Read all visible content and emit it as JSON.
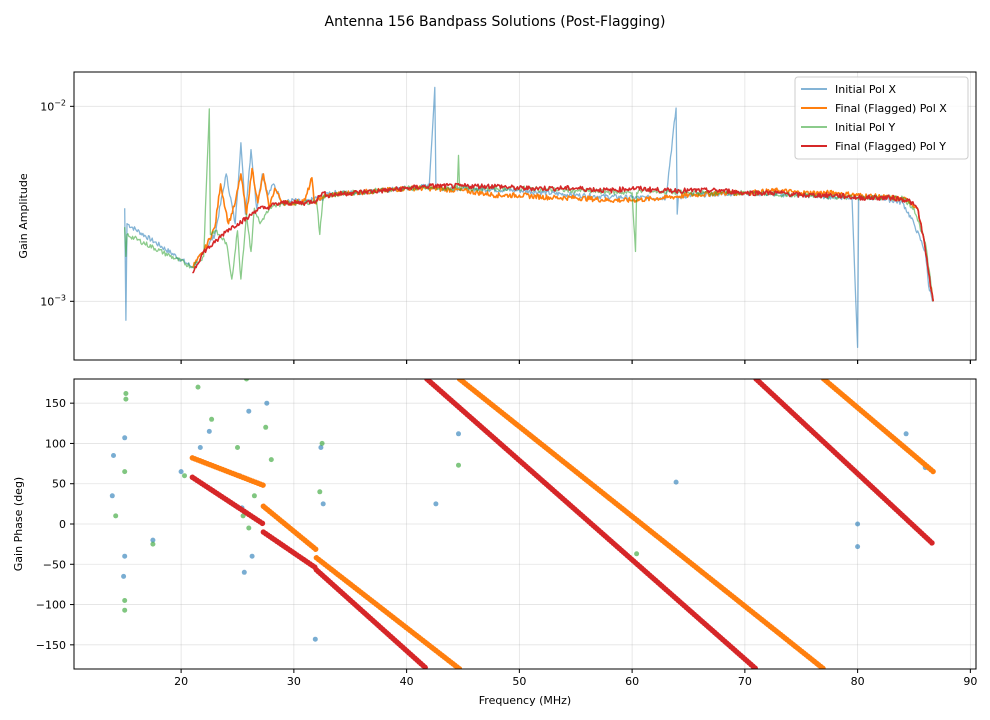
{
  "figure": {
    "title": "Antenna 156 Bandpass Solutions (Post-Flagging)"
  },
  "colors": {
    "pol_x_initial": "#1f77b4",
    "pol_x_final": "#ff7f0e",
    "pol_y_initial": "#2ca02c",
    "pol_y_final": "#d62728",
    "grid": "#b0b0b0"
  },
  "chart_data": [
    {
      "type": "line",
      "title": "Antenna 156 Bandpass Solutions (Post-Flagging)",
      "xlabel": "",
      "ylabel": "Gain Amplitude",
      "xlim": [
        10.5,
        90.5
      ],
      "ylim": [
        0.0005,
        0.015
      ],
      "yscale": "log",
      "x_ticks": [
        20,
        30,
        40,
        50,
        60,
        70,
        80,
        90
      ],
      "y_ticks": [
        0.001,
        0.01
      ],
      "y_tick_labels": [
        "10−3",
        "10−2"
      ],
      "grid": true,
      "legend_position": "top-right",
      "series": [
        {
          "name": "Initial Pol X",
          "color": "#1f77b4",
          "alpha": 0.55,
          "x": [
            15.0,
            15.1,
            15.2,
            21.0,
            22.0,
            23.0,
            24.0,
            24.8,
            25.3,
            25.7,
            26.2,
            26.7,
            27.2,
            27.7,
            28.2,
            29.0,
            30.0,
            31.0,
            32.0,
            32.4,
            33.0,
            35.0,
            38.0,
            40.0,
            42.0,
            42.5,
            42.6,
            43.0,
            45.0,
            50.0,
            55.0,
            60.0,
            63.0,
            63.9,
            64.0,
            64.1,
            65.0,
            70.0,
            75.0,
            79.5,
            80.0,
            80.1,
            80.5,
            82.0,
            84.0,
            85.0,
            86.0,
            86.3,
            86.7
          ],
          "y": [
            0.003,
            0.0008,
            0.0025,
            0.0015,
            0.0018,
            0.0022,
            0.0045,
            0.0025,
            0.0065,
            0.0028,
            0.006,
            0.003,
            0.0045,
            0.0035,
            0.004,
            0.0032,
            0.0033,
            0.0032,
            0.0034,
            0.0033,
            0.0036,
            0.0036,
            0.0037,
            0.0038,
            0.0039,
            0.0125,
            0.0039,
            0.0038,
            0.0038,
            0.0037,
            0.0035,
            0.0034,
            0.0034,
            0.0098,
            0.0028,
            0.0034,
            0.0035,
            0.0036,
            0.0035,
            0.0034,
            0.00058,
            0.0034,
            0.0034,
            0.0034,
            0.0032,
            0.0025,
            0.0018,
            0.0012,
            0.001
          ]
        },
        {
          "name": "Final (Flagged) Pol X",
          "color": "#ff7f0e",
          "alpha": 1.0,
          "x": [
            21.0,
            22.0,
            23.0,
            23.5,
            24.2,
            24.8,
            25.3,
            25.8,
            26.3,
            26.8,
            27.3,
            27.8,
            28.3,
            29.0,
            30.0,
            31.0,
            31.6,
            31.8,
            32.4,
            33.0,
            35.0,
            38.0,
            40.0,
            42.0,
            45.0,
            48.0,
            50.0,
            53.0,
            55.0,
            58.0,
            60.0,
            63.0,
            65.0,
            68.0,
            70.0,
            73.0,
            75.0,
            78.0,
            80.0,
            83.0,
            84.5,
            85.3,
            85.8,
            86.3,
            86.7
          ],
          "y": [
            0.0015,
            0.0018,
            0.0024,
            0.004,
            0.0025,
            0.0032,
            0.0045,
            0.0028,
            0.0048,
            0.0032,
            0.0045,
            0.003,
            0.0038,
            0.0032,
            0.0032,
            0.0033,
            0.0043,
            0.0032,
            0.0034,
            0.0035,
            0.0036,
            0.0037,
            0.0038,
            0.0038,
            0.0037,
            0.0035,
            0.0035,
            0.0034,
            0.0034,
            0.0033,
            0.0033,
            0.0034,
            0.0035,
            0.0036,
            0.0036,
            0.0037,
            0.0036,
            0.0036,
            0.0035,
            0.0034,
            0.0033,
            0.003,
            0.0022,
            0.0014,
            0.001
          ]
        },
        {
          "name": "Initial Pol Y",
          "color": "#2ca02c",
          "alpha": 0.55,
          "x": [
            15.0,
            15.1,
            15.2,
            21.0,
            22.0,
            22.5,
            22.6,
            23.0,
            24.0,
            24.5,
            25.0,
            25.3,
            25.8,
            26.2,
            26.5,
            27.0,
            27.5,
            28.0,
            29.0,
            30.0,
            31.0,
            32.0,
            32.3,
            32.6,
            33.0,
            35.0,
            40.0,
            44.5,
            44.6,
            44.7,
            50.0,
            55.0,
            60.0,
            60.3,
            60.4,
            61.0,
            65.0,
            70.0,
            75.0,
            80.0,
            84.0,
            85.0,
            86.0,
            86.7
          ],
          "y": [
            0.0024,
            0.0017,
            0.0022,
            0.0015,
            0.0017,
            0.0097,
            0.0022,
            0.0023,
            0.002,
            0.0013,
            0.0023,
            0.0013,
            0.0028,
            0.0018,
            0.003,
            0.0025,
            0.0028,
            0.003,
            0.0032,
            0.0032,
            0.0032,
            0.0033,
            0.0022,
            0.0035,
            0.0035,
            0.0036,
            0.0038,
            0.0038,
            0.0056,
            0.0038,
            0.0038,
            0.0037,
            0.0036,
            0.0018,
            0.0036,
            0.0037,
            0.0036,
            0.0036,
            0.0035,
            0.0034,
            0.0034,
            0.003,
            0.002,
            0.001
          ]
        },
        {
          "name": "Final (Flagged) Pol Y",
          "color": "#d62728",
          "alpha": 1.0,
          "x": [
            21.0,
            22.0,
            23.0,
            24.0,
            25.0,
            26.0,
            26.5,
            27.0,
            27.5,
            28.0,
            29.0,
            30.0,
            31.0,
            32.0,
            32.5,
            33.0,
            35.0,
            38.0,
            40.0,
            42.0,
            45.0,
            48.0,
            50.0,
            53.0,
            55.0,
            58.0,
            60.0,
            63.0,
            65.0,
            68.0,
            70.0,
            73.0,
            75.0,
            78.0,
            80.0,
            83.0,
            84.5,
            85.3,
            85.8,
            86.3,
            86.7
          ],
          "y": [
            0.0014,
            0.0018,
            0.002,
            0.0023,
            0.0025,
            0.0027,
            0.0029,
            0.003,
            0.003,
            0.0031,
            0.0032,
            0.0032,
            0.0032,
            0.0033,
            0.0036,
            0.0035,
            0.0036,
            0.0037,
            0.0038,
            0.0039,
            0.0039,
            0.0039,
            0.0038,
            0.0038,
            0.0038,
            0.0037,
            0.0038,
            0.0037,
            0.0037,
            0.0037,
            0.0036,
            0.0036,
            0.0035,
            0.0035,
            0.0034,
            0.0034,
            0.0033,
            0.003,
            0.0022,
            0.0014,
            0.001
          ]
        }
      ]
    },
    {
      "type": "scatter",
      "xlabel": "Frequency (MHz)",
      "ylabel": "Gain Phase (deg)",
      "xlim": [
        10.5,
        90.5
      ],
      "ylim": [
        -180,
        180
      ],
      "x_ticks": [
        20,
        30,
        40,
        50,
        60,
        70,
        80,
        90
      ],
      "y_ticks": [
        -150,
        -100,
        -50,
        0,
        50,
        100,
        150
      ],
      "grid": true,
      "series": [
        {
          "name": "Final (Flagged) Pol X",
          "color": "#ff7f0e",
          "marker": "o",
          "segments": [
            {
              "x_start": 21.0,
              "x_end": 27.3,
              "y_start": 82,
              "y_end": 48
            },
            {
              "x_start": 27.3,
              "x_end": 32.0,
              "y_start": 22,
              "y_end": -32
            },
            {
              "x_start": 32.0,
              "x_end": 44.7,
              "y_start": -42,
              "y_end": -180
            },
            {
              "x_start": 44.7,
              "x_end": 77.0,
              "y_start": 180,
              "y_end": -180
            },
            {
              "x_start": 77.0,
              "x_end": 86.7,
              "y_start": 180,
              "y_end": 65
            }
          ]
        },
        {
          "name": "Final (Flagged) Pol Y",
          "color": "#d62728",
          "marker": "o",
          "segments": [
            {
              "x_start": 21.0,
              "x_end": 27.3,
              "y_start": 58,
              "y_end": 0
            },
            {
              "x_start": 27.3,
              "x_end": 32.0,
              "y_start": -10,
              "y_end": -55
            },
            {
              "x_start": 32.0,
              "x_end": 41.8,
              "y_start": -57,
              "y_end": -180
            },
            {
              "x_start": 41.8,
              "x_end": 71.0,
              "y_start": 180,
              "y_end": -180
            },
            {
              "x_start": 71.0,
              "x_end": 86.7,
              "y_start": 180,
              "y_end": -25
            }
          ]
        },
        {
          "name": "Initial Pol X",
          "color": "#1f77b4",
          "marker": "o",
          "points": [
            [
              14.0,
              85
            ],
            [
              13.9,
              35
            ],
            [
              15.0,
              107
            ],
            [
              15.0,
              -40
            ],
            [
              14.9,
              -65
            ],
            [
              17.5,
              -20
            ],
            [
              20.0,
              65
            ],
            [
              21.7,
              95
            ],
            [
              22.5,
              115
            ],
            [
              25.2,
              60
            ],
            [
              25.4,
              20
            ],
            [
              25.6,
              -60
            ],
            [
              26.0,
              140
            ],
            [
              26.3,
              -40
            ],
            [
              27.6,
              150
            ],
            [
              31.9,
              -143
            ],
            [
              32.4,
              95
            ],
            [
              32.6,
              25
            ],
            [
              42.6,
              25
            ],
            [
              44.6,
              112
            ],
            [
              63.9,
              52
            ],
            [
              80.0,
              0
            ],
            [
              80.0,
              -28
            ],
            [
              84.3,
              112
            ],
            [
              86.0,
              70
            ]
          ]
        },
        {
          "name": "Initial Pol Y",
          "color": "#2ca02c",
          "marker": "o",
          "points": [
            [
              14.2,
              10
            ],
            [
              15.1,
              155
            ],
            [
              15.1,
              162
            ],
            [
              15.0,
              -95
            ],
            [
              15.0,
              -107
            ],
            [
              15.0,
              65
            ],
            [
              17.5,
              -25
            ],
            [
              20.3,
              60
            ],
            [
              21.5,
              170
            ],
            [
              22.7,
              130
            ],
            [
              25.0,
              95
            ],
            [
              25.5,
              10
            ],
            [
              25.8,
              180
            ],
            [
              26.0,
              -5
            ],
            [
              26.5,
              35
            ],
            [
              27.5,
              120
            ],
            [
              28.0,
              80
            ],
            [
              32.3,
              40
            ],
            [
              32.5,
              100
            ],
            [
              44.6,
              73
            ],
            [
              60.4,
              -37
            ]
          ]
        }
      ]
    }
  ]
}
